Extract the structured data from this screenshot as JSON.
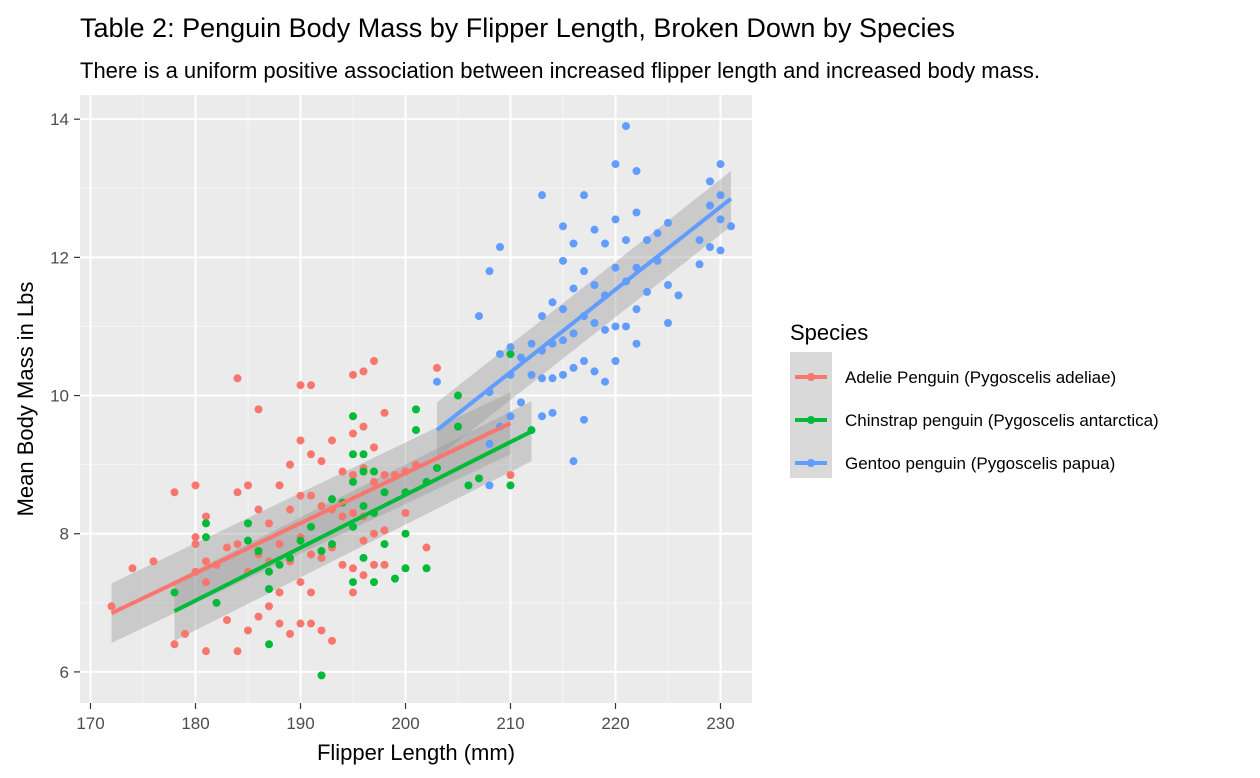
{
  "chart_data": {
    "type": "scatter",
    "title": "Table 2: Penguin Body Mass by Flipper Length, Broken Down by Species",
    "subtitle": "There is a uniform positive association between increased flipper length and increased body mass.",
    "xlabel": "Flipper Length (mm)",
    "ylabel": "Mean Body Mass in Lbs",
    "xlim": [
      169,
      233
    ],
    "ylim": [
      5.55,
      14.35
    ],
    "x_ticks": [
      170,
      180,
      190,
      200,
      210,
      220,
      230
    ],
    "y_ticks": [
      6,
      8,
      10,
      12,
      14
    ],
    "grid": true,
    "legend": {
      "title": "Species",
      "position": "right"
    },
    "series": [
      {
        "name": "Adelie Penguin (Pygoscelis adeliae)",
        "color": "#F8766D",
        "fit": {
          "x": [
            172,
            210
          ],
          "y": [
            6.85,
            9.6
          ],
          "ci_low": [
            6.42,
            9.15
          ],
          "ci_high": [
            7.28,
            10.05
          ]
        },
        "points": [
          [
            172,
            6.95
          ],
          [
            174,
            7.5
          ],
          [
            176,
            7.6
          ],
          [
            178,
            8.6
          ],
          [
            178,
            6.4
          ],
          [
            179,
            6.55
          ],
          [
            180,
            7.85
          ],
          [
            180,
            8.7
          ],
          [
            180,
            7.95
          ],
          [
            180,
            7.45
          ],
          [
            181,
            7.6
          ],
          [
            181,
            8.25
          ],
          [
            181,
            6.3
          ],
          [
            181,
            7.3
          ],
          [
            182,
            7.55
          ],
          [
            183,
            7.8
          ],
          [
            183,
            6.75
          ],
          [
            184,
            10.25
          ],
          [
            184,
            8.6
          ],
          [
            184,
            7.85
          ],
          [
            184,
            6.3
          ],
          [
            185,
            8.7
          ],
          [
            185,
            7.45
          ],
          [
            185,
            6.6
          ],
          [
            186,
            9.8
          ],
          [
            186,
            8.35
          ],
          [
            186,
            7.7
          ],
          [
            186,
            6.8
          ],
          [
            187,
            8.15
          ],
          [
            187,
            7.6
          ],
          [
            187,
            6.95
          ],
          [
            188,
            8.7
          ],
          [
            188,
            7.85
          ],
          [
            188,
            7.15
          ],
          [
            188,
            6.7
          ],
          [
            189,
            9.0
          ],
          [
            189,
            8.35
          ],
          [
            189,
            7.6
          ],
          [
            189,
            6.55
          ],
          [
            190,
            10.15
          ],
          [
            190,
            9.35
          ],
          [
            190,
            8.55
          ],
          [
            190,
            7.95
          ],
          [
            190,
            7.3
          ],
          [
            190,
            6.7
          ],
          [
            191,
            10.15
          ],
          [
            191,
            9.15
          ],
          [
            191,
            8.55
          ],
          [
            191,
            7.7
          ],
          [
            191,
            7.15
          ],
          [
            191,
            6.7
          ],
          [
            192,
            9.05
          ],
          [
            192,
            8.4
          ],
          [
            192,
            7.65
          ],
          [
            192,
            6.6
          ],
          [
            193,
            9.35
          ],
          [
            193,
            8.35
          ],
          [
            193,
            7.8
          ],
          [
            193,
            6.45
          ],
          [
            194,
            8.9
          ],
          [
            194,
            8.25
          ],
          [
            194,
            7.55
          ],
          [
            195,
            10.3
          ],
          [
            195,
            9.45
          ],
          [
            195,
            8.85
          ],
          [
            195,
            8.3
          ],
          [
            195,
            7.5
          ],
          [
            195,
            7.15
          ],
          [
            196,
            10.35
          ],
          [
            196,
            9.55
          ],
          [
            196,
            8.95
          ],
          [
            196,
            8.25
          ],
          [
            196,
            7.9
          ],
          [
            196,
            7.4
          ],
          [
            197,
            10.5
          ],
          [
            197,
            9.25
          ],
          [
            197,
            8.75
          ],
          [
            197,
            8.0
          ],
          [
            197,
            7.55
          ],
          [
            198,
            9.75
          ],
          [
            198,
            8.85
          ],
          [
            198,
            8.05
          ],
          [
            198,
            7.55
          ],
          [
            199,
            8.85
          ],
          [
            200,
            8.9
          ],
          [
            200,
            8.3
          ],
          [
            201,
            9.0
          ],
          [
            202,
            7.8
          ],
          [
            203,
            10.4
          ],
          [
            210,
            8.85
          ]
        ]
      },
      {
        "name": "Chinstrap penguin (Pygoscelis antarctica)",
        "color": "#00BA38",
        "fit": {
          "x": [
            178,
            212
          ],
          "y": [
            6.88,
            9.48
          ],
          "ci_low": [
            6.45,
            9.05
          ],
          "ci_high": [
            7.32,
            9.92
          ]
        },
        "points": [
          [
            178,
            7.15
          ],
          [
            181,
            8.15
          ],
          [
            181,
            7.95
          ],
          [
            182,
            7.0
          ],
          [
            185,
            8.15
          ],
          [
            185,
            7.9
          ],
          [
            186,
            7.75
          ],
          [
            187,
            7.45
          ],
          [
            187,
            7.2
          ],
          [
            187,
            6.4
          ],
          [
            188,
            7.55
          ],
          [
            189,
            7.65
          ],
          [
            190,
            7.9
          ],
          [
            191,
            8.1
          ],
          [
            192,
            7.75
          ],
          [
            192,
            5.95
          ],
          [
            193,
            8.5
          ],
          [
            193,
            7.85
          ],
          [
            194,
            8.45
          ],
          [
            195,
            9.7
          ],
          [
            195,
            9.15
          ],
          [
            195,
            8.75
          ],
          [
            195,
            8.1
          ],
          [
            195,
            7.3
          ],
          [
            196,
            9.15
          ],
          [
            196,
            8.9
          ],
          [
            196,
            8.4
          ],
          [
            196,
            7.65
          ],
          [
            197,
            8.9
          ],
          [
            197,
            8.3
          ],
          [
            197,
            7.3
          ],
          [
            198,
            8.6
          ],
          [
            198,
            7.85
          ],
          [
            199,
            7.35
          ],
          [
            200,
            8.6
          ],
          [
            200,
            8.0
          ],
          [
            200,
            7.5
          ],
          [
            201,
            9.8
          ],
          [
            201,
            9.5
          ],
          [
            202,
            8.75
          ],
          [
            202,
            7.5
          ],
          [
            203,
            8.95
          ],
          [
            205,
            10.0
          ],
          [
            205,
            9.55
          ],
          [
            206,
            8.7
          ],
          [
            207,
            8.8
          ],
          [
            210,
            10.6
          ],
          [
            210,
            8.7
          ],
          [
            212,
            9.5
          ]
        ]
      },
      {
        "name": "Gentoo penguin (Pygoscelis papua)",
        "color": "#619CFF",
        "fit": {
          "x": [
            203,
            231
          ],
          "y": [
            9.5,
            12.85
          ],
          "ci_low": [
            9.1,
            12.45
          ],
          "ci_high": [
            9.9,
            13.25
          ]
        },
        "points": [
          [
            203,
            10.2
          ],
          [
            207,
            11.15
          ],
          [
            208,
            11.8
          ],
          [
            208,
            10.05
          ],
          [
            208,
            9.3
          ],
          [
            208,
            8.7
          ],
          [
            209,
            12.15
          ],
          [
            209,
            10.6
          ],
          [
            209,
            9.55
          ],
          [
            210,
            10.7
          ],
          [
            210,
            10.3
          ],
          [
            210,
            9.7
          ],
          [
            211,
            10.55
          ],
          [
            211,
            9.9
          ],
          [
            212,
            10.3
          ],
          [
            212,
            10.75
          ],
          [
            213,
            12.9
          ],
          [
            213,
            11.15
          ],
          [
            213,
            10.65
          ],
          [
            213,
            10.25
          ],
          [
            213,
            9.7
          ],
          [
            214,
            11.35
          ],
          [
            214,
            10.75
          ],
          [
            214,
            10.25
          ],
          [
            214,
            9.75
          ],
          [
            215,
            12.45
          ],
          [
            215,
            11.95
          ],
          [
            215,
            11.25
          ],
          [
            215,
            10.8
          ],
          [
            215,
            10.3
          ],
          [
            216,
            12.2
          ],
          [
            216,
            11.55
          ],
          [
            216,
            10.9
          ],
          [
            216,
            10.4
          ],
          [
            216,
            9.05
          ],
          [
            217,
            12.9
          ],
          [
            217,
            11.8
          ],
          [
            217,
            11.15
          ],
          [
            217,
            10.5
          ],
          [
            217,
            9.65
          ],
          [
            218,
            12.4
          ],
          [
            218,
            11.6
          ],
          [
            218,
            11.05
          ],
          [
            218,
            10.35
          ],
          [
            219,
            12.2
          ],
          [
            219,
            11.45
          ],
          [
            219,
            10.95
          ],
          [
            219,
            10.2
          ],
          [
            220,
            13.35
          ],
          [
            220,
            12.55
          ],
          [
            220,
            11.85
          ],
          [
            220,
            11.0
          ],
          [
            220,
            10.5
          ],
          [
            221,
            13.9
          ],
          [
            221,
            12.25
          ],
          [
            221,
            11.65
          ],
          [
            221,
            11.0
          ],
          [
            222,
            13.25
          ],
          [
            222,
            12.65
          ],
          [
            222,
            11.85
          ],
          [
            222,
            11.25
          ],
          [
            222,
            10.75
          ],
          [
            223,
            12.25
          ],
          [
            223,
            11.5
          ],
          [
            224,
            12.35
          ],
          [
            224,
            11.95
          ],
          [
            225,
            12.5
          ],
          [
            225,
            11.6
          ],
          [
            225,
            11.05
          ],
          [
            226,
            11.45
          ],
          [
            228,
            12.25
          ],
          [
            228,
            11.9
          ],
          [
            229,
            13.1
          ],
          [
            229,
            12.75
          ],
          [
            229,
            12.15
          ],
          [
            230,
            13.35
          ],
          [
            230,
            12.9
          ],
          [
            230,
            12.55
          ],
          [
            230,
            12.1
          ],
          [
            231,
            12.45
          ]
        ]
      }
    ]
  }
}
